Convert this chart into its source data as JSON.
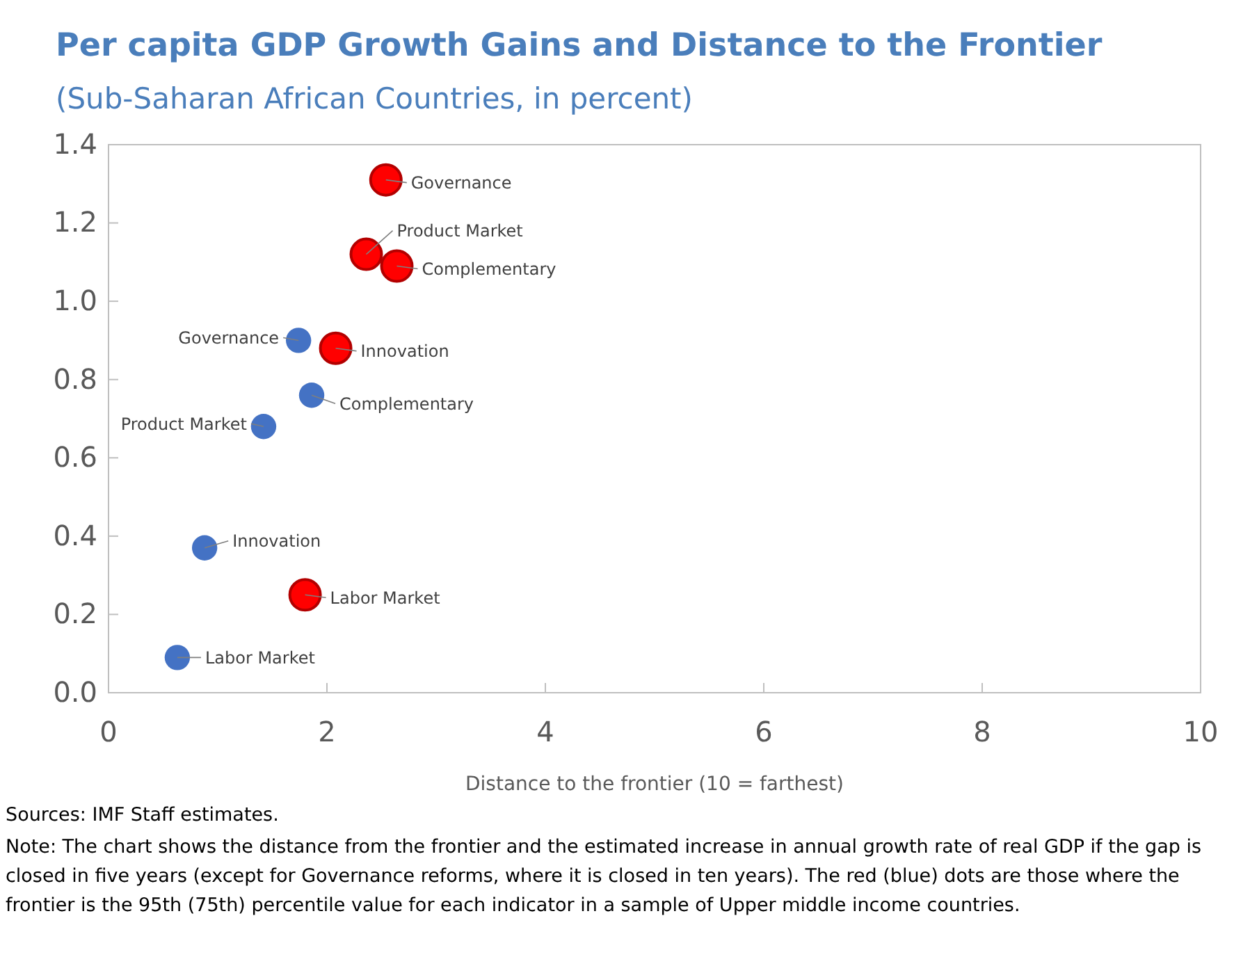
{
  "chart_data": {
    "type": "scatter",
    "title": "Per capita GDP Growth Gains and Distance to the Frontier",
    "subtitle": "(Sub-Saharan African Countries, in percent)",
    "xlabel": "Distance to the frontier (10 = farthest)",
    "xlim": [
      0,
      10
    ],
    "xticks": [
      0,
      2,
      4,
      6,
      8,
      10
    ],
    "ylim": [
      0,
      1.4
    ],
    "yticks": [
      {
        "value": 0,
        "label": "0.0"
      },
      {
        "value": 0.2,
        "label": "0.2"
      },
      {
        "value": 0.4,
        "label": "0.4"
      },
      {
        "value": 0.6,
        "label": "0.6"
      },
      {
        "value": 0.8,
        "label": "0.8"
      },
      {
        "value": 1,
        "label": "1.0"
      },
      {
        "value": 1.2,
        "label": "1.2"
      },
      {
        "value": 1.4,
        "label": "1.4"
      }
    ],
    "grid": false,
    "marker": "circle",
    "series": [
      {
        "color": "#ff0000",
        "x": [
          2.54,
          2.36,
          2.64,
          2.08,
          1.8
        ],
        "values": [
          1.31,
          1.12,
          1.09,
          0.88,
          0.25
        ]
      },
      {
        "color": "#4472c4",
        "x": [
          1.74,
          1.86,
          1.42,
          0.88,
          0.63
        ],
        "values": [
          0.9,
          0.76,
          0.68,
          0.37,
          0.09
        ]
      }
    ],
    "annotations": [
      {
        "text": "Governance",
        "x": 2.54,
        "y": 1.31
      },
      {
        "text": "Product Market",
        "x": 2.36,
        "y": 1.12
      },
      {
        "text": "Complementary",
        "x": 2.64,
        "y": 1.09
      },
      {
        "text": "Innovation",
        "x": 2.08,
        "y": 0.88
      },
      {
        "text": "Labor Market",
        "x": 1.8,
        "y": 0.25
      },
      {
        "text": "Governance",
        "x": 1.74,
        "y": 0.9
      },
      {
        "text": "Complementary",
        "x": 1.86,
        "y": 0.76
      },
      {
        "text": "Product Market",
        "x": 1.42,
        "y": 0.68
      },
      {
        "text": "Innovation",
        "x": 0.88,
        "y": 0.37
      },
      {
        "text": "Labor Market",
        "x": 0.63,
        "y": 0.09
      },
      "Sources:  IMF Staff estimates.",
      "Note: The chart shows the distance from the frontier and the estimated increase in annual growth rate of real GDP if the gap is closed in five years (except for Governance reforms, where it is closed in ten years). The red (blue) dots are those where the frontier is the 95th (75th) percentile value for each indicator in a sample of Upper middle income countries."
    ]
  }
}
